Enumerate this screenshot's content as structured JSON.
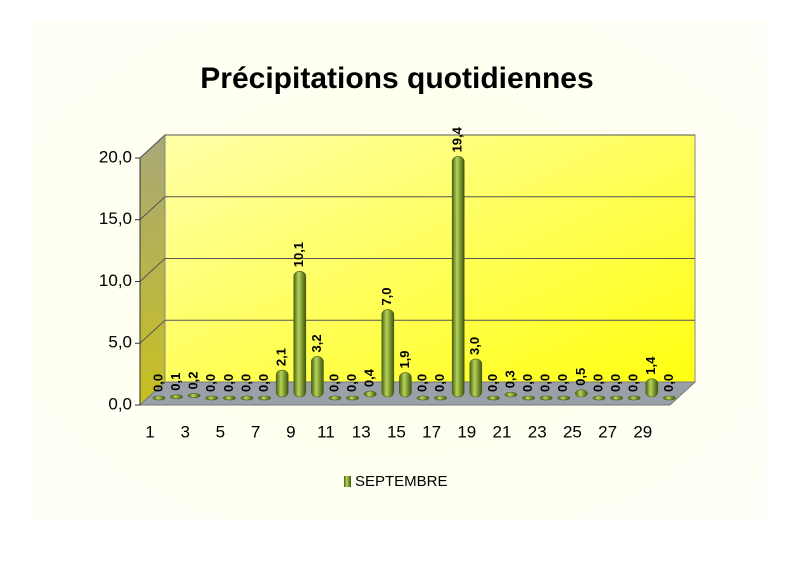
{
  "chart_data": {
    "type": "bar",
    "title": "Précipitations quotidiennes",
    "categories": [
      1,
      null,
      3,
      null,
      5,
      null,
      7,
      null,
      9,
      null,
      11,
      null,
      13,
      null,
      15,
      null,
      17,
      null,
      19,
      null,
      21,
      null,
      23,
      null,
      25,
      null,
      27,
      null,
      29,
      null
    ],
    "series": [
      {
        "name": "SEPTEMBRE",
        "color": "#7a9a2a",
        "values": [
          0.0,
          0.1,
          0.2,
          0.0,
          0.0,
          0.0,
          0.0,
          2.1,
          10.1,
          3.2,
          0.0,
          0.0,
          0.4,
          7.0,
          1.9,
          0.0,
          0.0,
          19.4,
          3.0,
          0.0,
          0.3,
          0.0,
          0.0,
          0.0,
          0.5,
          0.0,
          0.0,
          0.0,
          1.4,
          0.0
        ],
        "value_labels": [
          "0,0",
          "0,1",
          "0,2",
          "0,0",
          "0,0",
          "0,0",
          "0,0",
          "2,1",
          "10,1",
          "3,2",
          "0,0",
          "0,0",
          "0,4",
          "7,0",
          "1,9",
          "0,0",
          "0,0",
          "19,4",
          "3,0",
          "0,0",
          "0,3",
          "0,0",
          "0,0",
          "0,0",
          "0,5",
          "0,0",
          "0,0",
          "0,0",
          "1,4",
          "0,0"
        ]
      }
    ],
    "ylim": [
      0,
      20
    ],
    "yticks": [
      {
        "value": 0,
        "label": "0,0"
      },
      {
        "value": 5,
        "label": "5,0"
      },
      {
        "value": 10,
        "label": "10,0"
      },
      {
        "value": 15,
        "label": "15,0"
      },
      {
        "value": 20,
        "label": "20,0"
      }
    ],
    "grid": true,
    "legend": "bottom"
  }
}
